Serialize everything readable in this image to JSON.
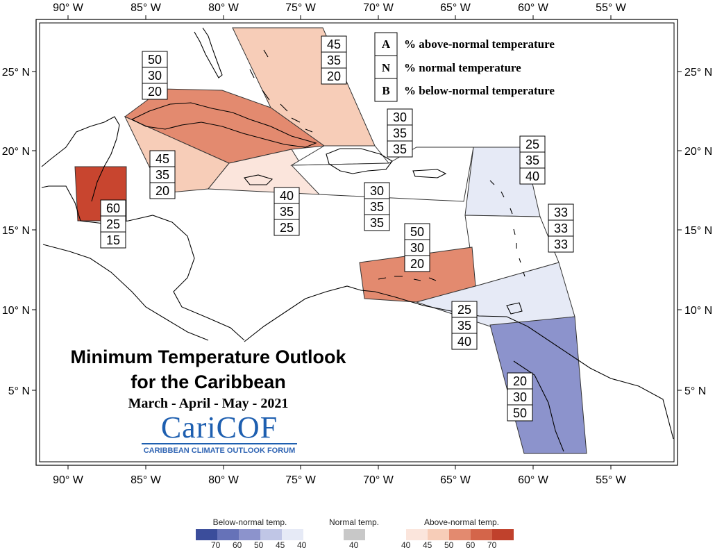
{
  "title_line1": "Minimum Temperature Outlook",
  "title_line2": "for the Caribbean",
  "subtitle": "March - April - May - 2021",
  "logo": {
    "wordmark": "CariCOF",
    "tagline": "CARIBBEAN CLIMATE OUTLOOK FORUM"
  },
  "key": {
    "A": {
      "letter": "A",
      "text": "% above-normal temperature"
    },
    "N": {
      "letter": "N",
      "text": "% normal temperature"
    },
    "B": {
      "letter": "B",
      "text": "% below-normal temperature"
    }
  },
  "lon_ticks": [
    "90° W",
    "85° W",
    "80° W",
    "75° W",
    "70° W",
    "65° W",
    "60° W",
    "55° W"
  ],
  "lat_ticks": [
    "25° N",
    "20° N",
    "15° N",
    "10° N",
    "5° N"
  ],
  "regions": [
    {
      "id": "belize",
      "A": "60",
      "N": "25",
      "B": "15",
      "color": "#c8452f"
    },
    {
      "id": "cuba",
      "A": "50",
      "N": "30",
      "B": "20",
      "color": "#e38a6f"
    },
    {
      "id": "bahamas",
      "A": "45",
      "N": "35",
      "B": "20",
      "color": "#f7cdb8"
    },
    {
      "id": "cayman",
      "A": "45",
      "N": "35",
      "B": "20",
      "color": "#f7cdb8"
    },
    {
      "id": "jamaica",
      "A": "40",
      "N": "35",
      "B": "25",
      "color": "#fbe5dc"
    },
    {
      "id": "turks",
      "A": "30",
      "N": "35",
      "B": "35",
      "color": "#ffffff"
    },
    {
      "id": "hispaniola",
      "A": "30",
      "N": "35",
      "B": "35",
      "color": "#ffffff"
    },
    {
      "id": "leeward",
      "A": "25",
      "N": "35",
      "B": "40",
      "color": "#e6eaf6"
    },
    {
      "id": "windward",
      "A": "33",
      "N": "33",
      "B": "33",
      "color": "#ffffff"
    },
    {
      "id": "abc",
      "A": "50",
      "N": "30",
      "B": "20",
      "color": "#e38a6f"
    },
    {
      "id": "trinidad",
      "A": "25",
      "N": "35",
      "B": "40",
      "color": "#e6eaf6"
    },
    {
      "id": "guianas",
      "A": "20",
      "N": "30",
      "B": "50",
      "color": "#8c93cc"
    }
  ],
  "legend": {
    "below_label": "Below-normal temp.",
    "normal_label": "Normal temp.",
    "above_label": "Above-normal temp.",
    "below_values": [
      "70",
      "60",
      "50",
      "45",
      "40"
    ],
    "normal_value": "40",
    "above_values": [
      "40",
      "45",
      "50",
      "60",
      "70"
    ],
    "below_colors": [
      "#3b4d9b",
      "#6672b8",
      "#8c93cc",
      "#c0c6e6",
      "#e6eaf6"
    ],
    "normal_color": "#c8c8c8",
    "above_colors": [
      "#fbe5dc",
      "#f7cdb8",
      "#e38a6f",
      "#d4654a",
      "#c0412c"
    ]
  }
}
